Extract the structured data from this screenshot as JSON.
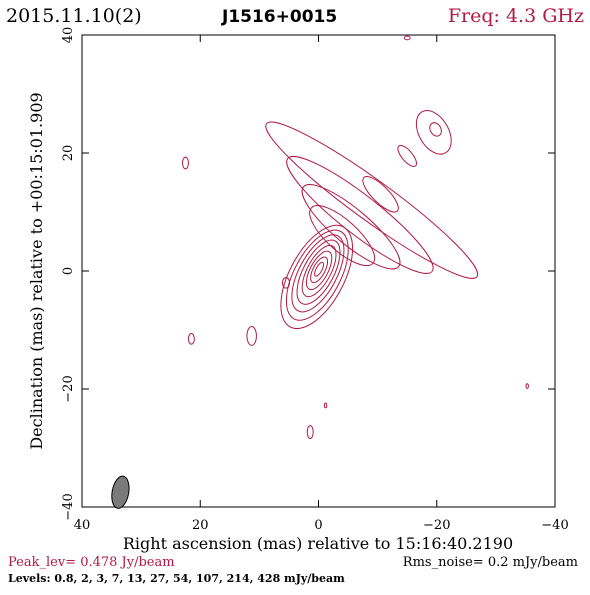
{
  "header": {
    "epoch": "2015.11.10(2)",
    "source": "J1516+0015",
    "freq": "Freq: 4.3 GHz"
  },
  "axes": {
    "xlabel": "Right ascension (mas) relative to 15:16:40.2190",
    "ylabel": "Declination (mas) relative to +00:15:01.909"
  },
  "footer": {
    "peak": "Peak_lev=  0.478 Jy/beam",
    "rms": "Rms_noise=  0.2 mJy/beam",
    "levels": "Levels: 0.8,   2,   3,   7,  13,  27,  54, 107, 214, 428 mJy/beam"
  },
  "colors": {
    "contour": "#b01a45",
    "freq_text": "#b01a45",
    "beam_fill": "#7a7a7a"
  },
  "chart_data": {
    "type": "contour",
    "title": "J1516+0015",
    "xlabel": "Right ascension (mas) relative to 15:16:40.2190",
    "ylabel": "Declination (mas) relative to +00:15:01.909",
    "xlim": [
      40,
      -40
    ],
    "ylim": [
      -40,
      40
    ],
    "xticks": [
      40,
      20,
      0,
      -20,
      -40
    ],
    "yticks": [
      40,
      20,
      0,
      -20,
      -40
    ],
    "tick_labels_x": [
      "40",
      "20",
      "0",
      "−20",
      "−40"
    ],
    "tick_labels_y": [
      "40",
      "20",
      "0",
      "−20",
      "−40"
    ],
    "peak_jy_per_beam": 0.478,
    "rms_mjy_per_beam": 0.2,
    "levels_mjy_per_beam": [
      0.8,
      2,
      3,
      7,
      13,
      27,
      54,
      107,
      214,
      428
    ],
    "beam": {
      "x": 33.5,
      "y": -37.5,
      "major": 4.8,
      "minor": 2.0,
      "pa_deg": 10
    },
    "core_contours": [
      {
        "cx": 0.3,
        "cy": -1.0,
        "rx": 4.6,
        "ry": 9.6
      },
      {
        "cx": 0.2,
        "cy": -0.7,
        "rx": 3.9,
        "ry": 8.4
      },
      {
        "cx": 0.1,
        "cy": -0.4,
        "rx": 3.2,
        "ry": 7.2
      },
      {
        "cx": 0.0,
        "cy": -0.2,
        "rx": 2.6,
        "ry": 6.0
      },
      {
        "cx": -0.1,
        "cy": 0.0,
        "rx": 2.0,
        "ry": 4.8
      },
      {
        "cx": -0.1,
        "cy": 0.1,
        "rx": 1.5,
        "ry": 3.6
      },
      {
        "cx": -0.1,
        "cy": 0.2,
        "rx": 1.0,
        "ry": 2.4
      },
      {
        "cx": -0.1,
        "cy": 0.3,
        "rx": 0.5,
        "ry": 1.3
      }
    ],
    "core_rotation_deg": 28,
    "jet_contours": [
      {
        "cx": -9.0,
        "cy": 12.0,
        "rx": 22.0,
        "ry": 3.4,
        "rot": 36
      },
      {
        "cx": -7.0,
        "cy": 9.5,
        "rx": 15.5,
        "ry": 3.3,
        "rot": 38
      },
      {
        "cx": -5.5,
        "cy": 7.5,
        "rx": 10.5,
        "ry": 3.0,
        "rot": 40
      },
      {
        "cx": -4.0,
        "cy": 6.0,
        "rx": 7.0,
        "ry": 2.6,
        "rot": 42
      },
      {
        "cx": -10.5,
        "cy": 13.0,
        "rx": 4.0,
        "ry": 1.4,
        "rot": 45
      },
      {
        "cx": -15.0,
        "cy": 19.5,
        "rx": 2.2,
        "ry": 0.9,
        "rot": 50
      },
      {
        "cx": -19.5,
        "cy": 23.5,
        "rx": 4.0,
        "ry": 2.5,
        "rot": 60
      },
      {
        "cx": -19.8,
        "cy": 24.0,
        "rx": 1.2,
        "ry": 0.9,
        "rot": 60
      }
    ],
    "blobs": [
      {
        "x": 22.5,
        "y": 18.3,
        "rx": 0.5,
        "ry": 1.0
      },
      {
        "x": -15.0,
        "y": 39.5,
        "rx": 0.5,
        "ry": 0.3
      },
      {
        "x": 5.5,
        "y": -2.0,
        "rx": 0.6,
        "ry": 0.9
      },
      {
        "x": 21.5,
        "y": -11.5,
        "rx": 0.5,
        "ry": 0.9
      },
      {
        "x": 11.3,
        "y": -11.0,
        "rx": 0.8,
        "ry": 1.6
      },
      {
        "x": -1.2,
        "y": -22.8,
        "rx": 0.2,
        "ry": 0.4
      },
      {
        "x": 1.4,
        "y": -27.3,
        "rx": 0.5,
        "ry": 1.1
      },
      {
        "x": -35.3,
        "y": -19.5,
        "rx": 0.2,
        "ry": 0.4
      }
    ]
  }
}
